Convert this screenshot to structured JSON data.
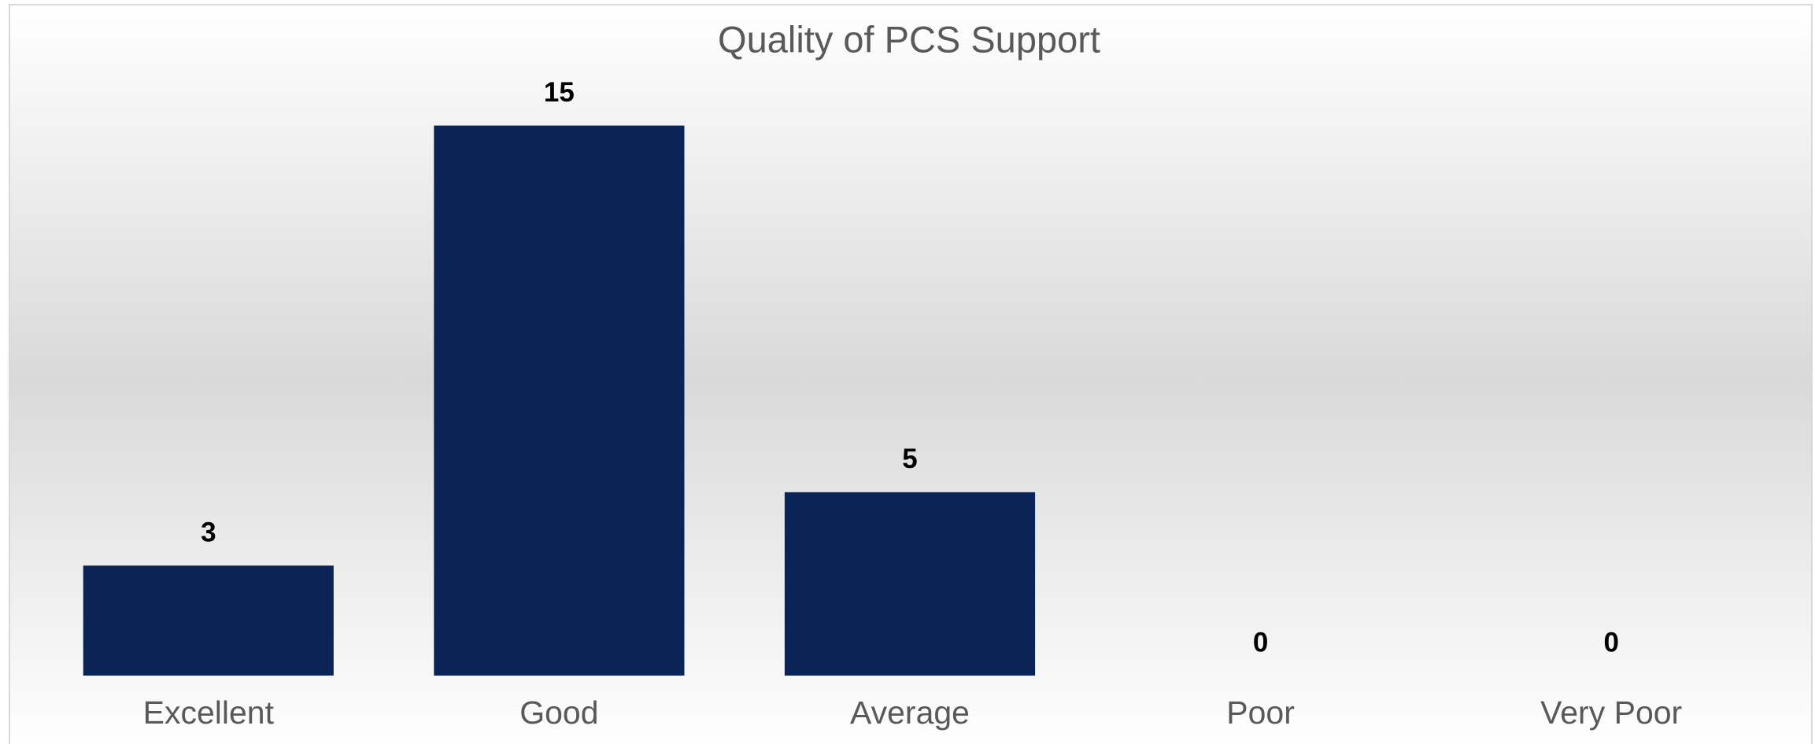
{
  "chart_data": {
    "type": "bar",
    "title": "Quality of PCS Support",
    "categories": [
      "Excellent",
      "Good",
      "Average",
      "Poor",
      "Very Poor"
    ],
    "values": [
      3,
      15,
      5,
      0,
      0
    ],
    "color": "#0b2458",
    "ylim": [
      0,
      16
    ],
    "grid": false
  }
}
